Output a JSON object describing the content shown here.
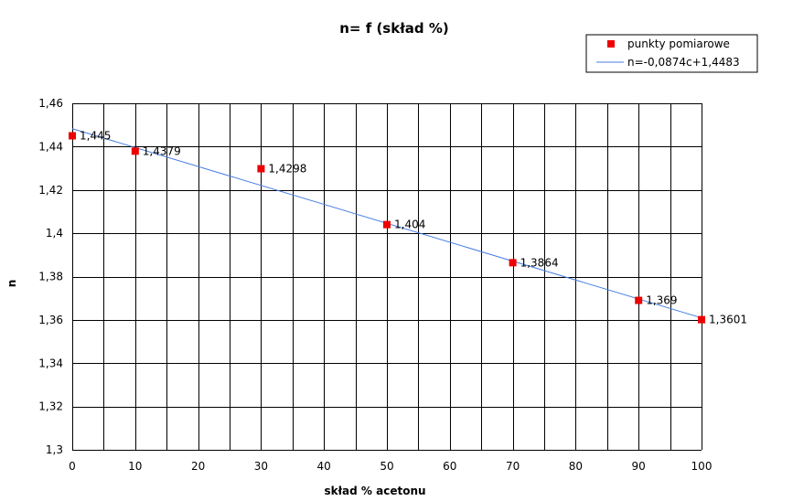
{
  "chart_data": {
    "type": "scatter",
    "title": "n= f (skład %)",
    "xlabel": "skład % acetonu",
    "ylabel": "n",
    "xlim": [
      0,
      100
    ],
    "ylim": [
      1.3,
      1.46
    ],
    "x_tick_labels": [
      "0",
      "10",
      "20",
      "30",
      "40",
      "50",
      "60",
      "70",
      "80",
      "90",
      "100"
    ],
    "y_tick_labels": [
      "1,3",
      "1,32",
      "1,34",
      "1,36",
      "1,38",
      "1,4",
      "1,42",
      "1,44",
      "1,46"
    ],
    "grid": true,
    "legend_position": "top-right",
    "series": [
      {
        "name": "punkty pomiarowe",
        "kind": "scatter",
        "color": "#ee0000",
        "x": [
          0,
          10,
          30,
          50,
          70,
          90,
          100
        ],
        "y": [
          1.445,
          1.4379,
          1.4298,
          1.404,
          1.3864,
          1.369,
          1.3601
        ],
        "labels": [
          "1,445",
          "1,4379",
          "1,4298",
          "1,404",
          "1,3864",
          "1,369",
          "1,3601"
        ]
      },
      {
        "name": "n=-0,0874c+1,4483",
        "kind": "line",
        "color": "#4a7ee0",
        "x": [
          0,
          100
        ],
        "y": [
          1.4483,
          1.3609
        ]
      }
    ]
  }
}
